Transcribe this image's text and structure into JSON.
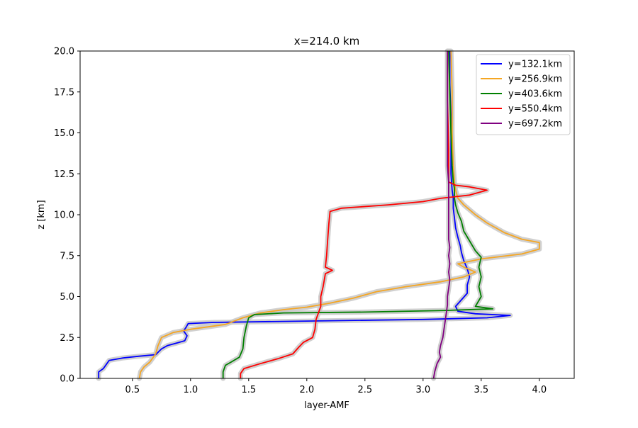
{
  "chart_data": {
    "type": "line",
    "title": "x=214.0 km",
    "xlabel": "layer-AMF",
    "ylabel": "z [km]",
    "xlim": [
      0.05,
      4.3
    ],
    "ylim": [
      0,
      20
    ],
    "xticks": [
      "0.5",
      "1.0",
      "1.5",
      "2.0",
      "2.5",
      "3.0",
      "3.5",
      "4.0"
    ],
    "yticks": [
      "0.0",
      "2.5",
      "5.0",
      "7.5",
      "10.0",
      "12.5",
      "15.0",
      "17.5",
      "20.0"
    ],
    "grid": false,
    "legend_position": "top-right",
    "uncertainty_band_color": "#c8c8c8",
    "series": [
      {
        "name": "y=132.1km",
        "color": "#0000ff",
        "points": [
          [
            0.21,
            0
          ],
          [
            0.21,
            0.4
          ],
          [
            0.25,
            0.6
          ],
          [
            0.28,
            0.9
          ],
          [
            0.3,
            1.1
          ],
          [
            0.42,
            1.25
          ],
          [
            0.55,
            1.35
          ],
          [
            0.7,
            1.45
          ],
          [
            0.75,
            1.8
          ],
          [
            0.8,
            2.0
          ],
          [
            0.9,
            2.2
          ],
          [
            0.95,
            2.3
          ],
          [
            0.97,
            2.6
          ],
          [
            0.94,
            2.9
          ],
          [
            0.96,
            3.1
          ],
          [
            0.98,
            3.35
          ],
          [
            1.2,
            3.42
          ],
          [
            2.0,
            3.5
          ],
          [
            3.0,
            3.6
          ],
          [
            3.55,
            3.7
          ],
          [
            3.75,
            3.85
          ],
          [
            3.45,
            3.95
          ],
          [
            3.3,
            4.1
          ],
          [
            3.28,
            4.4
          ],
          [
            3.33,
            4.8
          ],
          [
            3.38,
            5.2
          ],
          [
            3.38,
            5.7
          ],
          [
            3.4,
            6.2
          ],
          [
            3.38,
            6.7
          ],
          [
            3.35,
            7.2
          ],
          [
            3.33,
            7.7
          ],
          [
            3.32,
            8.1
          ],
          [
            3.3,
            8.6
          ],
          [
            3.28,
            9.2
          ],
          [
            3.27,
            9.8
          ],
          [
            3.26,
            10.4
          ],
          [
            3.26,
            11.0
          ],
          [
            3.25,
            11.5
          ],
          [
            3.24,
            12.5
          ],
          [
            3.24,
            14.0
          ],
          [
            3.24,
            16.0
          ],
          [
            3.23,
            18.0
          ],
          [
            3.23,
            20.0
          ]
        ]
      },
      {
        "name": "y=256.9km",
        "color": "#f5a623",
        "points": [
          [
            0.56,
            0
          ],
          [
            0.57,
            0.4
          ],
          [
            0.6,
            0.7
          ],
          [
            0.65,
            1.0
          ],
          [
            0.7,
            1.5
          ],
          [
            0.72,
            2.0
          ],
          [
            0.75,
            2.5
          ],
          [
            0.85,
            2.8
          ],
          [
            1.0,
            3.0
          ],
          [
            1.3,
            3.3
          ],
          [
            1.45,
            3.7
          ],
          [
            1.6,
            4.0
          ],
          [
            1.8,
            4.2
          ],
          [
            2.0,
            4.35
          ],
          [
            2.2,
            4.6
          ],
          [
            2.4,
            4.9
          ],
          [
            2.6,
            5.3
          ],
          [
            2.85,
            5.6
          ],
          [
            3.15,
            5.9
          ],
          [
            3.35,
            6.2
          ],
          [
            3.45,
            6.5
          ],
          [
            3.35,
            6.8
          ],
          [
            3.3,
            7.0
          ],
          [
            3.5,
            7.3
          ],
          [
            3.85,
            7.6
          ],
          [
            4.0,
            7.9
          ],
          [
            4.0,
            8.3
          ],
          [
            3.85,
            8.5
          ],
          [
            3.7,
            8.9
          ],
          [
            3.55,
            9.5
          ],
          [
            3.45,
            10.0
          ],
          [
            3.35,
            10.6
          ],
          [
            3.3,
            11.0
          ],
          [
            3.28,
            11.5
          ],
          [
            3.27,
            12.0
          ],
          [
            3.26,
            13.0
          ],
          [
            3.25,
            15.0
          ],
          [
            3.25,
            17.5
          ],
          [
            3.24,
            20.0
          ]
        ]
      },
      {
        "name": "y=403.6km",
        "color": "#008000",
        "points": [
          [
            1.28,
            0
          ],
          [
            1.28,
            0.4
          ],
          [
            1.3,
            0.8
          ],
          [
            1.35,
            1.0
          ],
          [
            1.42,
            1.3
          ],
          [
            1.45,
            1.8
          ],
          [
            1.46,
            2.5
          ],
          [
            1.48,
            3.2
          ],
          [
            1.5,
            3.7
          ],
          [
            1.55,
            3.9
          ],
          [
            1.8,
            4.0
          ],
          [
            2.5,
            4.05
          ],
          [
            3.2,
            4.15
          ],
          [
            3.6,
            4.25
          ],
          [
            3.45,
            4.4
          ],
          [
            3.5,
            5.0
          ],
          [
            3.48,
            5.6
          ],
          [
            3.5,
            6.2
          ],
          [
            3.48,
            6.8
          ],
          [
            3.5,
            7.4
          ],
          [
            3.45,
            7.8
          ],
          [
            3.4,
            8.4
          ],
          [
            3.35,
            9.0
          ],
          [
            3.33,
            9.6
          ],
          [
            3.3,
            10.1
          ],
          [
            3.28,
            10.6
          ],
          [
            3.27,
            11.0
          ],
          [
            3.27,
            11.6
          ],
          [
            3.26,
            12.0
          ],
          [
            3.25,
            13.0
          ],
          [
            3.24,
            15.0
          ],
          [
            3.23,
            17.5
          ],
          [
            3.22,
            20.0
          ]
        ]
      },
      {
        "name": "y=550.4km",
        "color": "#ff0000",
        "points": [
          [
            1.43,
            0
          ],
          [
            1.43,
            0.3
          ],
          [
            1.46,
            0.6
          ],
          [
            1.6,
            0.9
          ],
          [
            1.75,
            1.2
          ],
          [
            1.88,
            1.5
          ],
          [
            1.93,
            1.9
          ],
          [
            1.97,
            2.2
          ],
          [
            2.05,
            2.5
          ],
          [
            2.07,
            3.0
          ],
          [
            2.08,
            3.6
          ],
          [
            2.1,
            4.0
          ],
          [
            2.12,
            4.4
          ],
          [
            2.12,
            5.0
          ],
          [
            2.14,
            5.6
          ],
          [
            2.16,
            6.4
          ],
          [
            2.22,
            6.6
          ],
          [
            2.16,
            6.8
          ],
          [
            2.17,
            7.5
          ],
          [
            2.18,
            8.5
          ],
          [
            2.19,
            9.5
          ],
          [
            2.2,
            10.2
          ],
          [
            2.3,
            10.4
          ],
          [
            2.7,
            10.6
          ],
          [
            3.0,
            10.8
          ],
          [
            3.15,
            11.0
          ],
          [
            3.4,
            11.2
          ],
          [
            3.55,
            11.5
          ],
          [
            3.4,
            11.7
          ],
          [
            3.28,
            11.8
          ],
          [
            3.22,
            12.0
          ],
          [
            3.22,
            14.0
          ],
          [
            3.21,
            17.0
          ],
          [
            3.21,
            20.0
          ]
        ]
      },
      {
        "name": "y=697.2km",
        "color": "#800080",
        "points": [
          [
            3.09,
            0
          ],
          [
            3.1,
            0.4
          ],
          [
            3.12,
            0.9
          ],
          [
            3.15,
            1.3
          ],
          [
            3.14,
            1.6
          ],
          [
            3.15,
            2.0
          ],
          [
            3.17,
            2.5
          ],
          [
            3.18,
            3.0
          ],
          [
            3.19,
            3.5
          ],
          [
            3.2,
            4.0
          ],
          [
            3.21,
            4.5
          ],
          [
            3.21,
            5.0
          ],
          [
            3.22,
            5.5
          ],
          [
            3.23,
            6.0
          ],
          [
            3.22,
            6.5
          ],
          [
            3.23,
            7.0
          ],
          [
            3.22,
            7.5
          ],
          [
            3.23,
            8.0
          ],
          [
            3.22,
            8.5
          ],
          [
            3.22,
            9.0
          ],
          [
            3.22,
            9.5
          ],
          [
            3.22,
            10.0
          ],
          [
            3.22,
            11.0
          ],
          [
            3.22,
            12.0
          ],
          [
            3.21,
            13.0
          ],
          [
            3.21,
            15.0
          ],
          [
            3.21,
            17.5
          ],
          [
            3.21,
            20.0
          ]
        ]
      }
    ]
  }
}
